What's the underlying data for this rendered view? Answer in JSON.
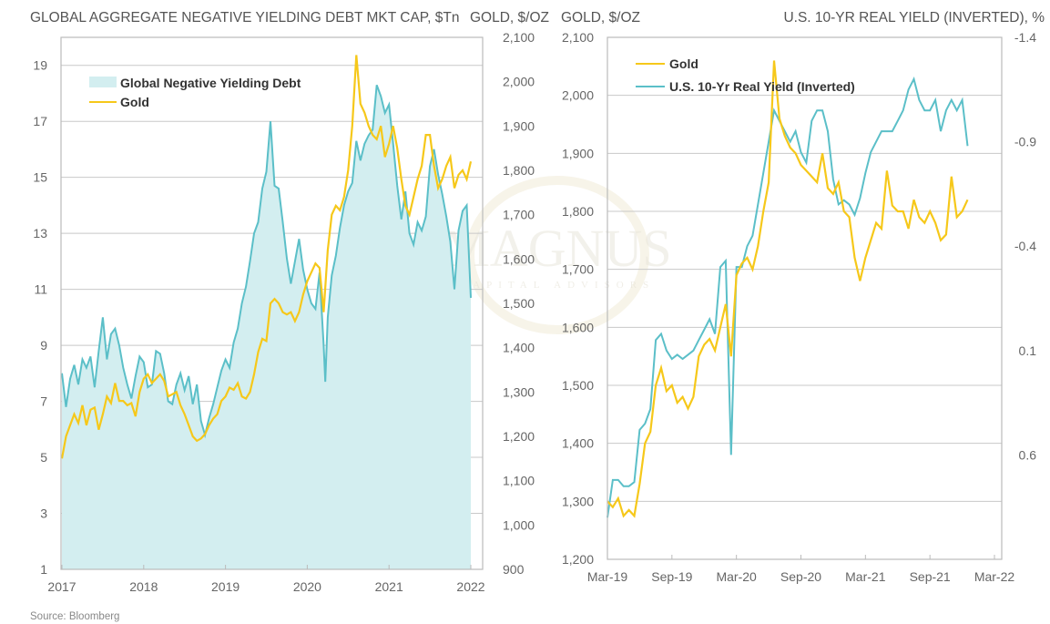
{
  "chart_data": [
    {
      "type": "area",
      "title": "GLOBAL AGGREGATE NEGATIVE YIELDING DEBT MKT CAP, $Tn",
      "right_axis_title": "GOLD, $/OZ",
      "xlabel": "",
      "ylabel": "GLOBAL AGGREGATE NEGATIVE YIELDING DEBT MKT CAP, $Tn",
      "x_ticks": [
        "2017",
        "2018",
        "2019",
        "2020",
        "2021",
        "2022"
      ],
      "xlim": [
        2017.0,
        2022.2
      ],
      "ylim": [
        1,
        20
      ],
      "y_ticks": [
        "1",
        "3",
        "5",
        "7",
        "9",
        "11",
        "13",
        "15",
        "17",
        "19"
      ],
      "y2lim": [
        900,
        2100
      ],
      "y2_ticks": [
        "900",
        "1,000",
        "1,100",
        "1,200",
        "1,300",
        "1,400",
        "1,500",
        "1,600",
        "1,700",
        "1,800",
        "1,900",
        "2,000",
        "2,100"
      ],
      "grid": true,
      "legend_position": "top-left",
      "legend": [
        "Global Negative Yielding Debt",
        "Gold"
      ],
      "series": [
        {
          "name": "Global Negative Yielding Debt",
          "axis": "left",
          "kind": "area",
          "color": "#5bbfc8",
          "fill": "#d3eef0",
          "x": [
            2017.0,
            2017.05,
            2017.1,
            2017.15,
            2017.2,
            2017.25,
            2017.3,
            2017.35,
            2017.4,
            2017.45,
            2017.5,
            2017.55,
            2017.6,
            2017.65,
            2017.7,
            2017.75,
            2017.8,
            2017.85,
            2017.9,
            2017.95,
            2018.0,
            2018.05,
            2018.1,
            2018.15,
            2018.2,
            2018.25,
            2018.3,
            2018.35,
            2018.4,
            2018.45,
            2018.5,
            2018.55,
            2018.6,
            2018.65,
            2018.7,
            2018.75,
            2018.8,
            2018.85,
            2018.9,
            2018.95,
            2019.0,
            2019.05,
            2019.1,
            2019.15,
            2019.2,
            2019.25,
            2019.3,
            2019.35,
            2019.4,
            2019.45,
            2019.5,
            2019.55,
            2019.6,
            2019.65,
            2019.7,
            2019.75,
            2019.8,
            2019.85,
            2019.9,
            2019.95,
            2020.0,
            2020.05,
            2020.1,
            2020.15,
            2020.2,
            2020.22,
            2020.25,
            2020.3,
            2020.35,
            2020.4,
            2020.45,
            2020.5,
            2020.55,
            2020.6,
            2020.65,
            2020.7,
            2020.75,
            2020.8,
            2020.85,
            2020.9,
            2020.95,
            2021.0,
            2021.05,
            2021.1,
            2021.15,
            2021.2,
            2021.25,
            2021.3,
            2021.35,
            2021.4,
            2021.45,
            2021.5,
            2021.55,
            2021.6,
            2021.65,
            2021.7,
            2021.75,
            2021.8,
            2021.85,
            2021.9,
            2021.95,
            2022.0
          ],
          "values": [
            8.0,
            6.8,
            7.8,
            8.3,
            7.6,
            8.5,
            8.2,
            8.6,
            7.5,
            8.8,
            10.0,
            8.5,
            9.4,
            9.6,
            9.0,
            8.2,
            7.6,
            7.1,
            7.9,
            8.6,
            8.4,
            7.5,
            7.6,
            8.8,
            8.7,
            8.0,
            7.0,
            6.9,
            7.6,
            8.0,
            7.4,
            7.9,
            6.9,
            7.6,
            6.3,
            5.8,
            6.4,
            6.9,
            7.5,
            8.1,
            8.5,
            8.2,
            9.1,
            9.6,
            10.5,
            11.1,
            12.0,
            13.0,
            13.4,
            14.6,
            15.2,
            17.0,
            14.7,
            14.6,
            13.4,
            12.1,
            11.2,
            12.0,
            12.8,
            11.7,
            11.0,
            10.5,
            10.3,
            11.6,
            9.0,
            7.7,
            10.0,
            11.5,
            12.2,
            13.2,
            14.0,
            14.5,
            14.8,
            16.3,
            15.6,
            16.2,
            16.5,
            16.7,
            18.3,
            17.9,
            17.3,
            17.6,
            16.2,
            14.7,
            13.5,
            14.5,
            13.0,
            12.6,
            13.4,
            13.1,
            13.6,
            15.4,
            16.0,
            15.1,
            14.4,
            13.6,
            12.7,
            11.0,
            13.1,
            13.8,
            14.0,
            10.7
          ]
        },
        {
          "name": "Gold",
          "axis": "right",
          "kind": "line",
          "color": "#f6c81a",
          "x": [
            2017.0,
            2017.05,
            2017.1,
            2017.15,
            2017.2,
            2017.25,
            2017.3,
            2017.35,
            2017.4,
            2017.45,
            2017.5,
            2017.55,
            2017.6,
            2017.65,
            2017.7,
            2017.75,
            2017.8,
            2017.85,
            2017.9,
            2017.95,
            2018.0,
            2018.05,
            2018.1,
            2018.15,
            2018.2,
            2018.25,
            2018.3,
            2018.35,
            2018.4,
            2018.45,
            2018.5,
            2018.55,
            2018.6,
            2018.65,
            2018.7,
            2018.75,
            2018.8,
            2018.85,
            2018.9,
            2018.95,
            2019.0,
            2019.05,
            2019.1,
            2019.15,
            2019.2,
            2019.25,
            2019.3,
            2019.35,
            2019.4,
            2019.45,
            2019.5,
            2019.55,
            2019.6,
            2019.65,
            2019.7,
            2019.75,
            2019.8,
            2019.85,
            2019.9,
            2019.95,
            2020.0,
            2020.05,
            2020.1,
            2020.15,
            2020.2,
            2020.25,
            2020.3,
            2020.35,
            2020.4,
            2020.45,
            2020.5,
            2020.55,
            2020.6,
            2020.65,
            2020.7,
            2020.75,
            2020.8,
            2020.85,
            2020.9,
            2020.95,
            2021.0,
            2021.05,
            2021.1,
            2021.15,
            2021.2,
            2021.25,
            2021.3,
            2021.35,
            2021.4,
            2021.45,
            2021.5,
            2021.55,
            2021.6,
            2021.65,
            2021.7,
            2021.75,
            2021.8,
            2021.85,
            2021.9,
            2021.95,
            2022.0
          ],
          "values": [
            1150,
            1200,
            1225,
            1250,
            1230,
            1270,
            1225,
            1260,
            1265,
            1215,
            1250,
            1290,
            1275,
            1320,
            1280,
            1280,
            1270,
            1275,
            1245,
            1300,
            1330,
            1340,
            1320,
            1330,
            1340,
            1325,
            1290,
            1295,
            1300,
            1270,
            1250,
            1225,
            1200,
            1190,
            1195,
            1205,
            1225,
            1240,
            1250,
            1280,
            1290,
            1310,
            1305,
            1320,
            1290,
            1285,
            1300,
            1340,
            1390,
            1420,
            1415,
            1500,
            1510,
            1500,
            1480,
            1475,
            1480,
            1460,
            1480,
            1520,
            1550,
            1570,
            1590,
            1580,
            1480,
            1620,
            1700,
            1720,
            1710,
            1740,
            1800,
            1900,
            2060,
            1950,
            1930,
            1900,
            1880,
            1870,
            1900,
            1830,
            1860,
            1900,
            1850,
            1780,
            1720,
            1700,
            1740,
            1780,
            1810,
            1880,
            1880,
            1810,
            1760,
            1780,
            1810,
            1830,
            1760,
            1790,
            1800,
            1780,
            1820
          ]
        }
      ],
      "source": "Source: Bloomberg"
    },
    {
      "type": "line",
      "title": "",
      "left_axis_title": "GOLD, $/OZ",
      "right_axis_title": "U.S. 10-YR REAL YIELD (INVERTED), %",
      "x_ticks": [
        "Mar-19",
        "Sep-19",
        "Mar-20",
        "Sep-20",
        "Mar-21",
        "Sep-21",
        "Mar-22"
      ],
      "xlim": [
        0,
        36
      ],
      "x_units": "months since Mar-19",
      "ylim": [
        1200,
        2100
      ],
      "y_ticks": [
        "1,200",
        "1,300",
        "1,400",
        "1,500",
        "1,600",
        "1,700",
        "1,800",
        "1,900",
        "2,000",
        "2,100"
      ],
      "y2lim": [
        1.1,
        -1.4
      ],
      "y2_inverted": true,
      "y2_ticks": [
        "-1.4",
        "-0.9",
        "-0.4",
        "0.1",
        "0.6"
      ],
      "y2_tick_values": [
        -1.4,
        -0.9,
        -0.4,
        0.1,
        0.6
      ],
      "grid": true,
      "legend_position": "top-left",
      "legend": [
        "Gold",
        "U.S. 10-Yr Real Yield (Inverted)"
      ],
      "series": [
        {
          "name": "Gold",
          "axis": "left",
          "color": "#f6c81a",
          "x": [
            0,
            0.5,
            1,
            1.5,
            2,
            2.5,
            3,
            3.5,
            4,
            4.5,
            5,
            5.5,
            6,
            6.5,
            7,
            7.5,
            8,
            8.5,
            9,
            9.5,
            10,
            10.5,
            11,
            11.5,
            12,
            12.5,
            13,
            13.5,
            14,
            14.5,
            15,
            15.5,
            16,
            16.5,
            17,
            17.5,
            18,
            18.5,
            19,
            19.5,
            20,
            20.5,
            21,
            21.5,
            22,
            22.5,
            23,
            23.5,
            24,
            24.5,
            25,
            25.5,
            26,
            26.5,
            27,
            27.5,
            28,
            28.5,
            29,
            29.5,
            30,
            30.5,
            31,
            31.5,
            32,
            32.5,
            33,
            33.5
          ],
          "values": [
            1300,
            1290,
            1305,
            1275,
            1285,
            1275,
            1330,
            1400,
            1420,
            1500,
            1530,
            1490,
            1500,
            1470,
            1480,
            1460,
            1480,
            1550,
            1570,
            1580,
            1560,
            1600,
            1640,
            1550,
            1690,
            1710,
            1720,
            1700,
            1740,
            1800,
            1850,
            2060,
            1960,
            1930,
            1910,
            1900,
            1880,
            1870,
            1860,
            1850,
            1900,
            1840,
            1830,
            1850,
            1800,
            1790,
            1720,
            1680,
            1720,
            1750,
            1780,
            1770,
            1870,
            1810,
            1800,
            1800,
            1770,
            1820,
            1790,
            1780,
            1800,
            1780,
            1750,
            1760,
            1860,
            1790,
            1800,
            1820
          ]
        },
        {
          "name": "U.S. 10-Yr Real Yield (Inverted)",
          "axis": "right",
          "color": "#5bbfc8",
          "x": [
            0,
            0.5,
            1,
            1.5,
            2,
            2.5,
            3,
            3.5,
            4,
            4.5,
            5,
            5.5,
            6,
            6.5,
            7,
            7.5,
            8,
            8.5,
            9,
            9.5,
            10,
            10.5,
            11,
            11.5,
            12,
            12.5,
            13,
            13.5,
            14,
            14.5,
            15,
            15.5,
            16,
            16.5,
            17,
            17.5,
            18,
            18.5,
            19,
            19.5,
            20,
            20.5,
            21,
            21.5,
            22,
            22.5,
            23,
            23.5,
            24,
            24.5,
            25,
            25.5,
            26,
            26.5,
            27,
            27.5,
            28,
            28.5,
            29,
            29.5,
            30,
            30.5,
            31,
            31.5,
            32,
            32.5,
            33,
            33.5
          ],
          "values": [
            0.9,
            0.72,
            0.72,
            0.75,
            0.75,
            0.73,
            0.48,
            0.45,
            0.38,
            0.05,
            0.02,
            0.1,
            0.14,
            0.12,
            0.14,
            0.12,
            0.1,
            0.05,
            0.0,
            -0.05,
            0.02,
            -0.3,
            -0.33,
            0.6,
            -0.3,
            -0.3,
            -0.4,
            -0.45,
            -0.6,
            -0.75,
            -0.9,
            -1.05,
            -1.0,
            -0.95,
            -0.9,
            -0.95,
            -0.85,
            -0.8,
            -1.0,
            -1.05,
            -1.05,
            -0.95,
            -0.72,
            -0.6,
            -0.62,
            -0.6,
            -0.55,
            -0.63,
            -0.75,
            -0.85,
            -0.9,
            -0.95,
            -0.95,
            -0.95,
            -1.0,
            -1.05,
            -1.15,
            -1.2,
            -1.1,
            -1.05,
            -1.05,
            -1.1,
            -0.95,
            -1.05,
            -1.1,
            -1.05,
            -1.1,
            -0.88
          ]
        }
      ]
    }
  ],
  "watermark": {
    "main": "MAGNUS",
    "sub": "CAPITAL ADVISORS"
  },
  "source": "Source: Bloomberg"
}
